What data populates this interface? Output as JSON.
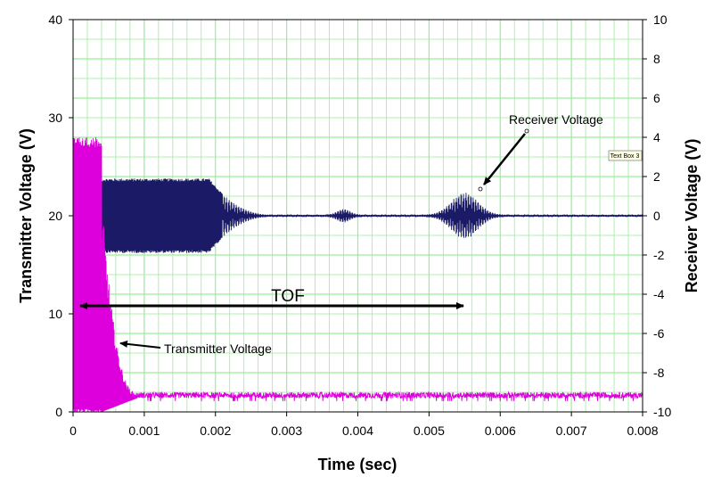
{
  "chart_data": {
    "type": "line",
    "xlabel": "Time (sec)",
    "ylabel_left": "Transmitter Voltage (V)",
    "ylabel_right": "Receiver Voltage (V)",
    "xlim": [
      0,
      0.008
    ],
    "ylim_left": [
      0,
      40
    ],
    "ylim_right": [
      -10,
      10
    ],
    "x_ticks": [
      "0",
      "0.001",
      "0.002",
      "0.003",
      "0.004",
      "0.005",
      "0.006",
      "0.007",
      "0.008"
    ],
    "y_left_ticks": [
      "0",
      "10",
      "20",
      "30",
      "40"
    ],
    "y_right_ticks": [
      "-10",
      "-8",
      "-6",
      "-4",
      "-2",
      "0",
      "2",
      "4",
      "6",
      "8",
      "10"
    ],
    "grid": true,
    "grid_color": "#99ee99",
    "series": [
      {
        "name": "Transmitter Voltage",
        "axis": "left",
        "color": "#dd00dd",
        "description_points": {
          "burst_end_x": 0.0004,
          "burst_low": 0,
          "burst_high": 28,
          "tail_end_x": 0.0009,
          "baseline_low": 1.4,
          "baseline_high": 2.0
        }
      },
      {
        "name": "Receiver Voltage",
        "axis": "right",
        "color": "#1a1a66",
        "description_points": {
          "plateau_end_x": 0.0019,
          "plateau_amplitude": 1.9,
          "ringdown_end_x": 0.0028,
          "small_packet_center_x": 0.0038,
          "small_packet_amplitude": 0.3,
          "echo_center_x": 0.0055,
          "echo_amplitude": 1.15
        }
      }
    ],
    "annotations": [
      {
        "text": "TOF",
        "arrow_from_x": 0.0,
        "arrow_to_x": 0.0055,
        "y_left": 10.8
      },
      {
        "text": "Receiver Voltage"
      },
      {
        "text": "Transmitter Voltage"
      },
      {
        "text": "Text Box 3"
      }
    ]
  }
}
